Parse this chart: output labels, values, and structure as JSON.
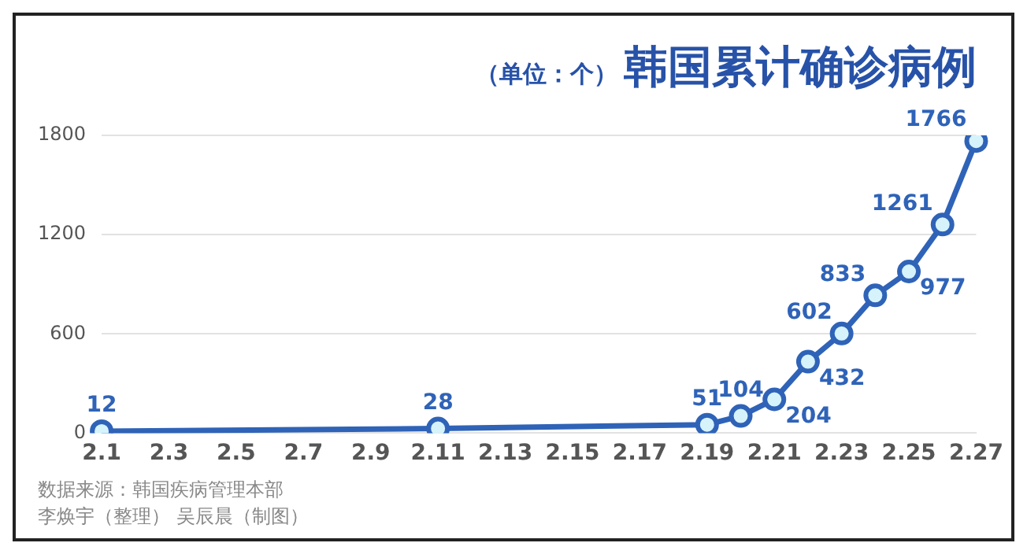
{
  "chart_data": {
    "type": "line",
    "title": "韩国累计确诊病例",
    "subtitle": "（单位：个）",
    "categories": [
      "2.1",
      null,
      "2.3",
      null,
      "2.5",
      null,
      "2.7",
      null,
      "2.9",
      null,
      "2.11",
      null,
      "2.13",
      null,
      "2.15",
      null,
      "2.17",
      null,
      "2.19",
      null,
      "2.21",
      null,
      "2.23",
      null,
      "2.25",
      null,
      "2.27"
    ],
    "series": [
      {
        "color": "#2f63b8",
        "values": [
          12,
          null,
          null,
          null,
          null,
          null,
          null,
          null,
          null,
          null,
          28,
          null,
          null,
          null,
          null,
          null,
          null,
          null,
          51,
          104,
          204,
          432,
          602,
          833,
          977,
          1261,
          1766
        ]
      }
    ],
    "ylim": [
      0,
      1800
    ],
    "yticks": [
      0,
      600,
      1200,
      1800
    ],
    "grid": "y",
    "legend": false,
    "marker": "circle",
    "line_style": "solid",
    "data_labels": true,
    "annotations": [
      "数据来源：韩国疾病管理本部",
      "李焕宇（整理） 吴辰晨（制图）"
    ]
  }
}
